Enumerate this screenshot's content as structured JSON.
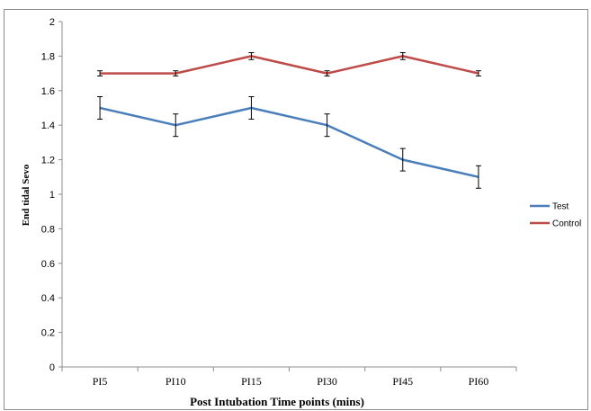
{
  "chart_data": {
    "type": "line",
    "title": "",
    "xlabel": "Post Intubation Time points (mins)",
    "ylabel": "End tidal Sevo",
    "categories": [
      "PI5",
      "PI10",
      "PI15",
      "PI30",
      "PI45",
      "PI60"
    ],
    "ylim": [
      0,
      2
    ],
    "yticks": [
      "0",
      "0.2",
      "0.4",
      "0.6",
      "0.8",
      "1",
      "1.2",
      "1.4",
      "1.6",
      "1.8",
      "2"
    ],
    "grid": false,
    "legend_position": "right",
    "series": [
      {
        "name": "Test",
        "color": "#4a7ebb",
        "values": [
          1.5,
          1.4,
          1.5,
          1.4,
          1.2,
          1.1
        ],
        "error": [
          0.065,
          0.065,
          0.065,
          0.065,
          0.065,
          0.065
        ]
      },
      {
        "name": "Control",
        "color": "#be4b48",
        "values": [
          1.7,
          1.7,
          1.8,
          1.7,
          1.8,
          1.7
        ],
        "error": [
          0.015,
          0.015,
          0.02,
          0.015,
          0.02,
          0.015
        ]
      }
    ]
  }
}
